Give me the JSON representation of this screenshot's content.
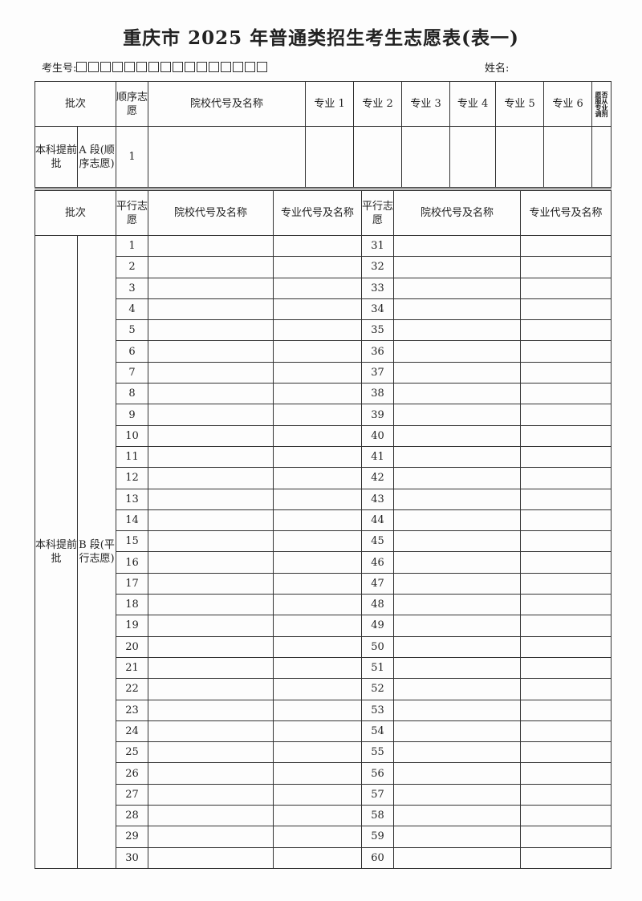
{
  "title": "重庆市 2025 年普通类招生考生志愿表(表一)",
  "candidate_number_label": "考生号:",
  "candidate_number_boxes": 16,
  "name_label": "姓名:",
  "table_a": {
    "headers": {
      "batch": "批次",
      "order": "顺序志愿",
      "school": "院校代号及名称",
      "majors": [
        "专业 1",
        "专业 2",
        "专业 3",
        "专业 4",
        "专业 5",
        "专业 6"
      ],
      "adjust": "愿否服从专业调剂"
    },
    "row": {
      "batch": "本科提前批",
      "segment": "A 段(顺序志愿)",
      "number": "1"
    }
  },
  "table_b": {
    "headers": {
      "batch": "批次",
      "parallel": "平行志愿",
      "school": "院校代号及名称",
      "major": "专业代号及名称"
    },
    "batch": "本科提前批",
    "segment": "B 段(平行志愿)",
    "left_numbers": [
      "1",
      "2",
      "3",
      "4",
      "5",
      "6",
      "7",
      "8",
      "9",
      "10",
      "11",
      "12",
      "13",
      "14",
      "15",
      "16",
      "17",
      "18",
      "19",
      "20",
      "21",
      "22",
      "23",
      "24",
      "25",
      "26",
      "27",
      "28",
      "29",
      "30"
    ],
    "right_numbers": [
      "31",
      "32",
      "33",
      "34",
      "35",
      "36",
      "37",
      "38",
      "39",
      "40",
      "41",
      "42",
      "43",
      "44",
      "45",
      "46",
      "47",
      "48",
      "49",
      "50",
      "51",
      "52",
      "53",
      "54",
      "55",
      "56",
      "57",
      "58",
      "59",
      "60"
    ]
  }
}
